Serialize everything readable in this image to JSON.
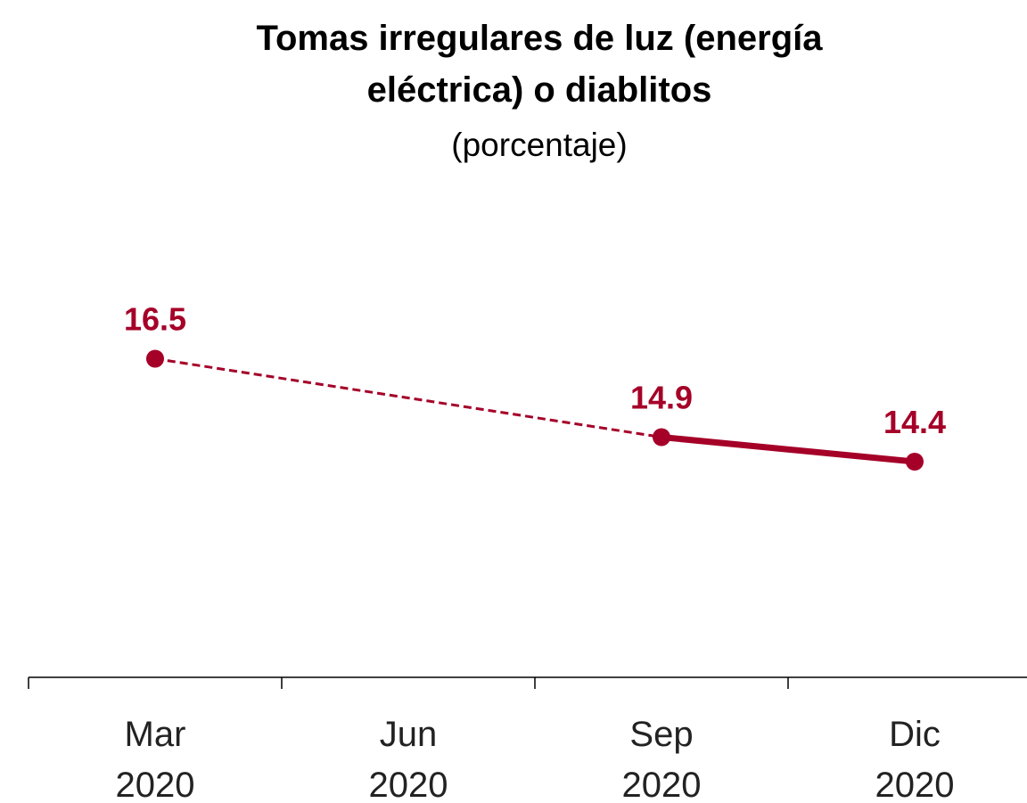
{
  "chart_data": {
    "type": "line",
    "title": "Tomas irregulares de luz (energía eléctrica) o diablitos",
    "subtitle": "(porcentaje)",
    "categories": [
      "Mar 2020",
      "Jun 2020",
      "Sep 2020",
      "Dic 2020"
    ],
    "series": [
      {
        "color": "#a50028",
        "values": [
          16.5,
          null,
          14.9,
          14.4
        ]
      }
    ],
    "ylim": [
      10,
      20
    ]
  }
}
